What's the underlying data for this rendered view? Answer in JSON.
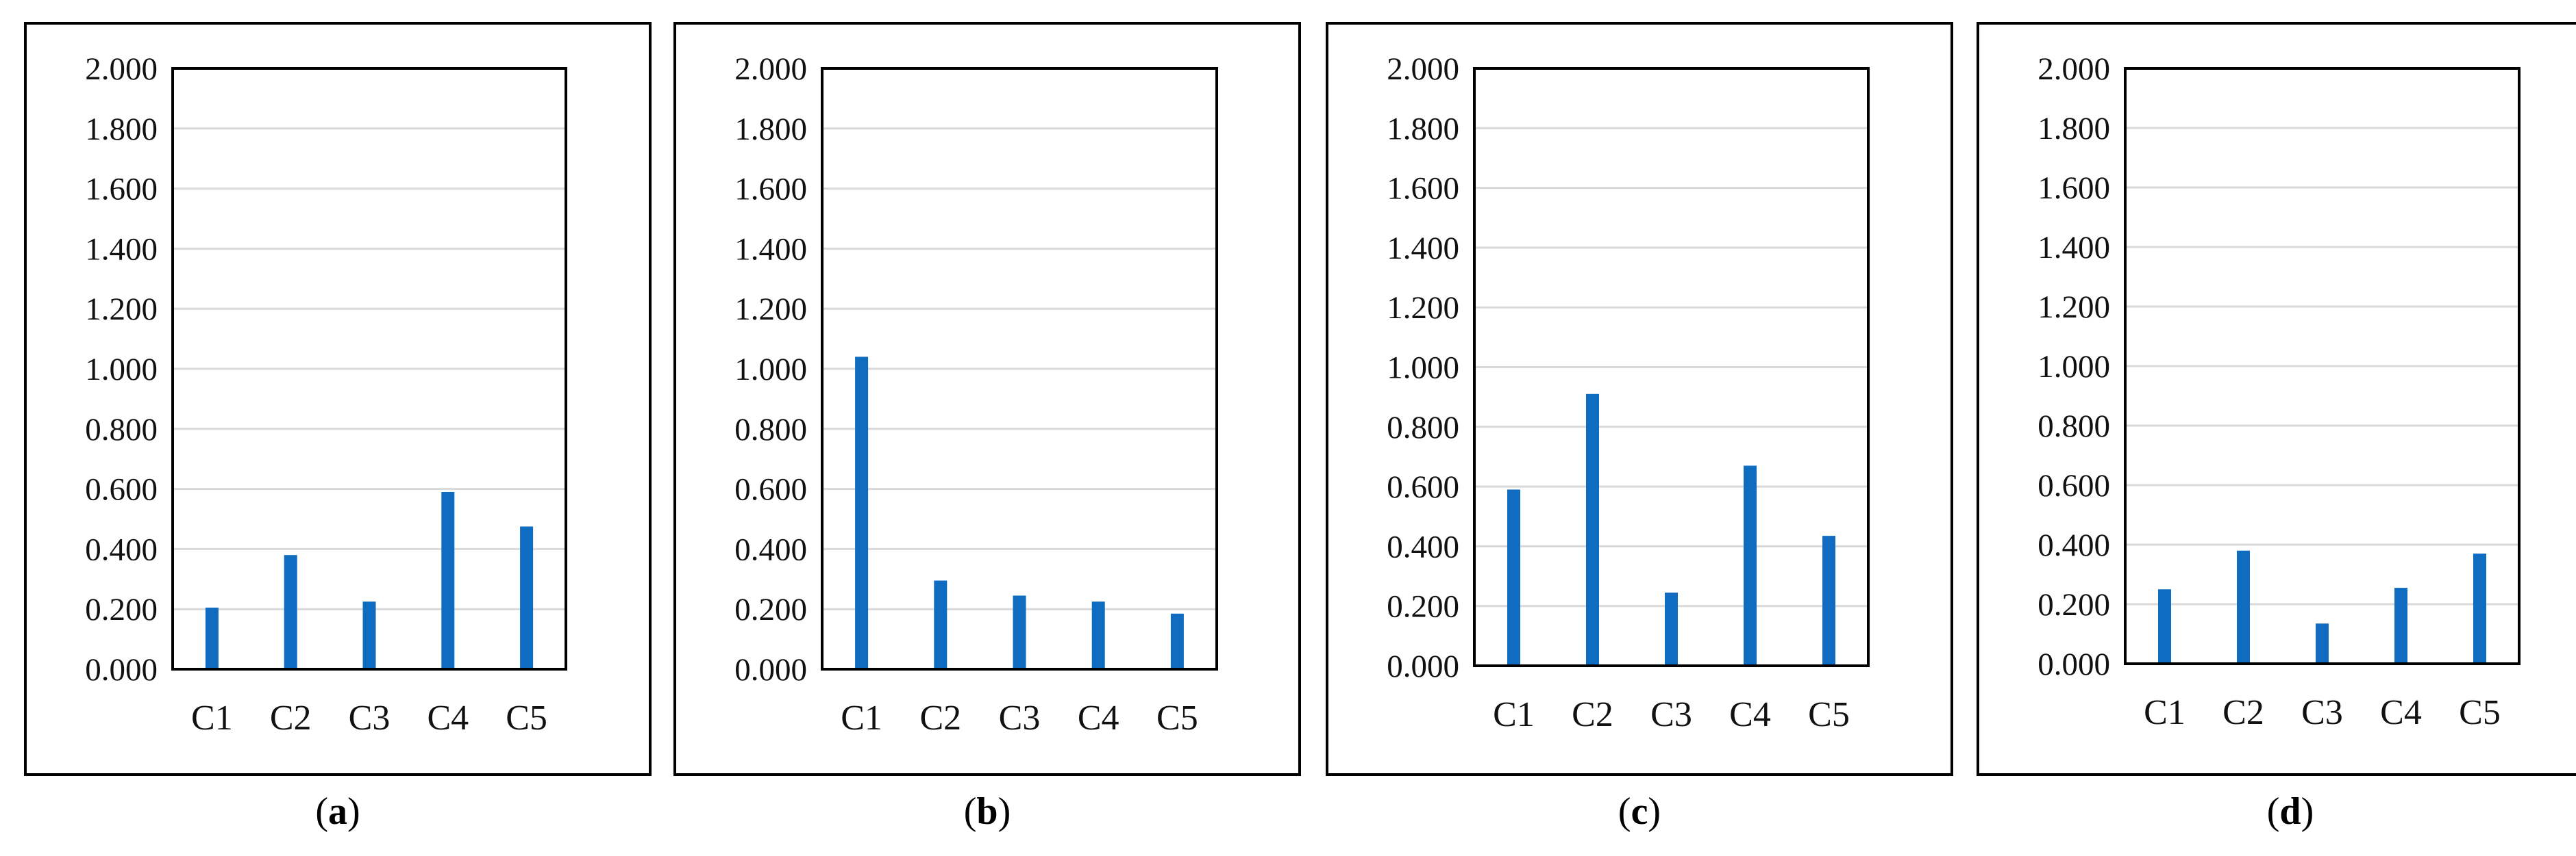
{
  "colors": {
    "bar": "#0F6CC0",
    "grid": "#D9D9D9",
    "frame": "#000000"
  },
  "chart_data": [
    {
      "type": "bar",
      "panel": "a",
      "categories": [
        "C1",
        "C2",
        "C3",
        "C4",
        "C5"
      ],
      "values": [
        0.205,
        0.38,
        0.225,
        0.59,
        0.475
      ],
      "ylim": [
        0,
        2
      ],
      "yticks": [
        "0.000",
        "0.200",
        "0.400",
        "0.600",
        "0.800",
        "1.000",
        "1.200",
        "1.400",
        "1.600",
        "1.800",
        "2.000"
      ],
      "grid": true
    },
    {
      "type": "bar",
      "panel": "b",
      "categories": [
        "C1",
        "C2",
        "C3",
        "C4",
        "C5"
      ],
      "values": [
        1.04,
        0.295,
        0.245,
        0.225,
        0.185
      ],
      "ylim": [
        0,
        2
      ],
      "yticks": [
        "0.000",
        "0.200",
        "0.400",
        "0.600",
        "0.800",
        "1.000",
        "1.200",
        "1.400",
        "1.600",
        "1.800",
        "2.000"
      ],
      "grid": true
    },
    {
      "type": "bar",
      "panel": "c",
      "categories": [
        "C1",
        "C2",
        "C3",
        "C4",
        "C5"
      ],
      "values": [
        0.59,
        0.91,
        0.245,
        0.67,
        0.435
      ],
      "ylim": [
        0,
        2
      ],
      "yticks": [
        "0.000",
        "0.200",
        "0.400",
        "0.600",
        "0.800",
        "1.000",
        "1.200",
        "1.400",
        "1.600",
        "1.800",
        "2.000"
      ],
      "grid": true
    },
    {
      "type": "bar",
      "panel": "d",
      "categories": [
        "C1",
        "C2",
        "C3",
        "C4",
        "C5"
      ],
      "values": [
        0.25,
        0.38,
        0.135,
        0.255,
        0.37
      ],
      "ylim": [
        0,
        2
      ],
      "yticks": [
        "0.000",
        "0.200",
        "0.400",
        "0.600",
        "0.800",
        "1.000",
        "1.200",
        "1.400",
        "1.600",
        "1.800",
        "2.000"
      ],
      "grid": true
    }
  ]
}
